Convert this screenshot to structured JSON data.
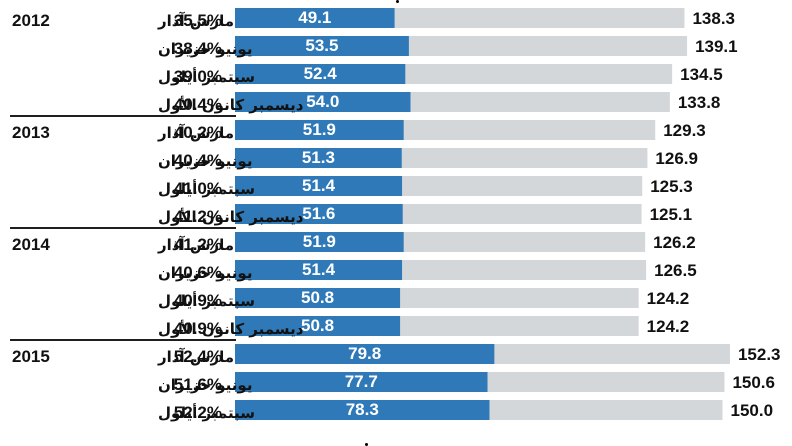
{
  "chart_data": {
    "type": "bar",
    "orientation": "horizontal",
    "stacked": "overlay",
    "title": "",
    "xlabel": "",
    "ylabel": "",
    "grid": false,
    "legend": "none",
    "colors": {
      "primary_bar": "#2f79b8",
      "total_bar": "#d4d7da",
      "separator": "#1f1f1f",
      "text": "#111111",
      "primary_label": "#ffffff"
    },
    "rows": [
      {
        "year": "2012",
        "month": "مارس آذار",
        "percent": "35.5%",
        "primary": 49.1,
        "total": 138.3
      },
      {
        "year": "",
        "month": "يونيو حزيران",
        "percent": "38.4%",
        "primary": 53.5,
        "total": 139.1
      },
      {
        "year": "",
        "month": "سبتمبر أيلول",
        "percent": "39.0%",
        "primary": 52.4,
        "total": 134.5
      },
      {
        "year": "",
        "month": "ديسمبر كانون الأول",
        "percent": "40.4%",
        "primary": 54.0,
        "total": 133.8
      },
      {
        "year": "2013",
        "month": "مارس آذار",
        "percent": "40.2%",
        "primary": 51.9,
        "total": 129.3
      },
      {
        "year": "",
        "month": "يونيو حزيران",
        "percent": "40.4%",
        "primary": 51.3,
        "total": 126.9
      },
      {
        "year": "",
        "month": "سبتمبر أيلول",
        "percent": "41.0%",
        "primary": 51.4,
        "total": 125.3
      },
      {
        "year": "",
        "month": "ديسمبر كانون الأول",
        "percent": "41.2%",
        "primary": 51.6,
        "total": 125.1
      },
      {
        "year": "2014",
        "month": "مارس آذار",
        "percent": "41.2%",
        "primary": 51.9,
        "total": 126.2
      },
      {
        "year": "",
        "month": "يونيو حزيران",
        "percent": "40.6%",
        "primary": 51.4,
        "total": 126.5
      },
      {
        "year": "",
        "month": "سبتمبر أيلول",
        "percent": "40.9%",
        "primary": 50.8,
        "total": 124.2
      },
      {
        "year": "",
        "month": "ديسمبر كانون الأول",
        "percent": "40.9%",
        "primary": 50.8,
        "total": 124.2
      },
      {
        "year": "2015",
        "month": "مارس آذار",
        "percent": "52.4%",
        "primary": 79.8,
        "total": 152.3
      },
      {
        "year": "",
        "month": "يونيو حزيران",
        "percent": "51.6%",
        "primary": 77.7,
        "total": 150.6
      },
      {
        "year": "",
        "month": "سبتمبر أيلول",
        "percent": "52.2%",
        "primary": 78.3,
        "total": 150.0
      }
    ]
  }
}
